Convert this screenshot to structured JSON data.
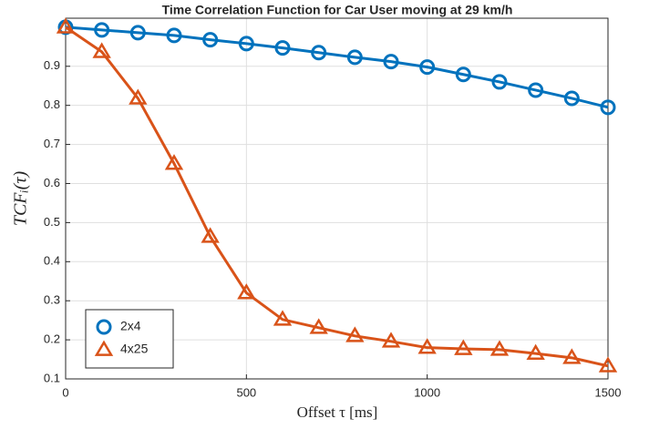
{
  "chart_data": {
    "type": "line",
    "title": "Time Correlation Function for Car User moving at 29 km/h",
    "xlabel": "Offset τ [ms]",
    "ylabel": "TCFᵢ(τ)",
    "x": [
      0,
      100,
      200,
      300,
      400,
      500,
      600,
      700,
      800,
      900,
      1000,
      1100,
      1200,
      1300,
      1400,
      1500
    ],
    "series": [
      {
        "name": "2x4",
        "color": "#0072bd",
        "marker": "circle",
        "values": [
          1.0,
          0.993,
          0.986,
          0.979,
          0.968,
          0.958,
          0.947,
          0.935,
          0.923,
          0.912,
          0.898,
          0.879,
          0.86,
          0.839,
          0.818,
          0.795
        ]
      },
      {
        "name": "4x25",
        "color": "#d95319",
        "marker": "triangle",
        "values": [
          1.0,
          0.937,
          0.818,
          0.651,
          0.464,
          0.32,
          0.252,
          0.231,
          0.21,
          0.196,
          0.18,
          0.177,
          0.175,
          0.165,
          0.154,
          0.133
        ]
      }
    ],
    "xlim": [
      0,
      1500
    ],
    "xticks": [
      0,
      500,
      1000,
      1500
    ],
    "ylim": [
      0.1,
      1.023
    ],
    "yticks": [
      0.1,
      0.2,
      0.3,
      0.4,
      0.5,
      0.6,
      0.7,
      0.8,
      0.9
    ],
    "grid": true,
    "legend": "lower left"
  }
}
